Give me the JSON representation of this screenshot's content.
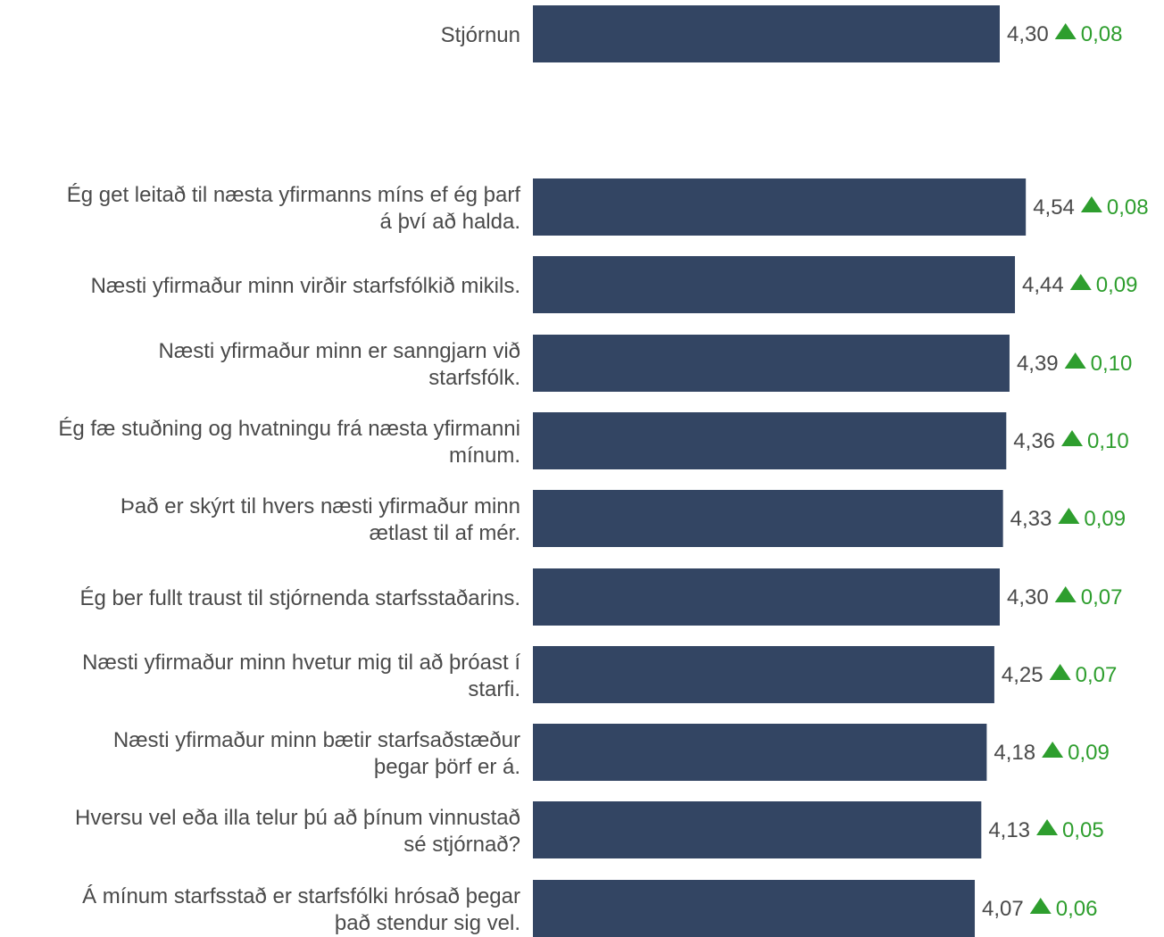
{
  "chart_data": {
    "type": "bar",
    "orientation": "horizontal",
    "value_scale_max": 5,
    "colors": {
      "bar": "#334563",
      "delta_up": "#2e9e2e",
      "text": "#4a4a4a"
    },
    "summary": {
      "label": [
        "Stjórnun"
      ],
      "value": 4.3,
      "value_label": "4,30",
      "delta": 0.08,
      "delta_label": "0,08",
      "delta_icon": "triangle-up-icon"
    },
    "categories": [
      [
        "Ég get leitað til næsta yfirmanns míns ef ég þarf",
        "á því að halda."
      ],
      [
        "Næsti yfirmaður minn virðir starfsfólkið mikils."
      ],
      [
        "Næsti yfirmaður minn er sanngjarn við",
        "starfsfólk."
      ],
      [
        "Ég fæ stuðning og hvatningu frá næsta yfirmanni",
        "mínum."
      ],
      [
        "Það er skýrt til hvers næsti yfirmaður minn",
        "ætlast til af mér."
      ],
      [
        "Ég ber fullt traust til stjórnenda starfsstaðarins."
      ],
      [
        "Næsti yfirmaður minn hvetur mig til að þróast í",
        "starfi."
      ],
      [
        "Næsti yfirmaður minn bætir starfsaðstæður",
        "þegar þörf er á."
      ],
      [
        "Hversu vel eða illa telur þú að þínum vinnustað",
        "sé stjórnað?"
      ],
      [
        "Á mínum starfsstað er starfsfólki hrósað þegar",
        "það stendur sig vel."
      ]
    ],
    "values": [
      4.54,
      4.44,
      4.39,
      4.36,
      4.33,
      4.3,
      4.25,
      4.18,
      4.13,
      4.07
    ],
    "value_labels": [
      "4,54",
      "4,44",
      "4,39",
      "4,36",
      "4,33",
      "4,30",
      "4,25",
      "4,18",
      "4,13",
      "4,07"
    ],
    "deltas": [
      0.08,
      0.09,
      0.1,
      0.1,
      0.09,
      0.07,
      0.07,
      0.09,
      0.05,
      0.06
    ],
    "delta_labels": [
      "0,08",
      "0,09",
      "0,10",
      "0,10",
      "0,09",
      "0,07",
      "0,07",
      "0,09",
      "0,05",
      "0,06"
    ],
    "delta_icon": "triangle-up-icon"
  }
}
